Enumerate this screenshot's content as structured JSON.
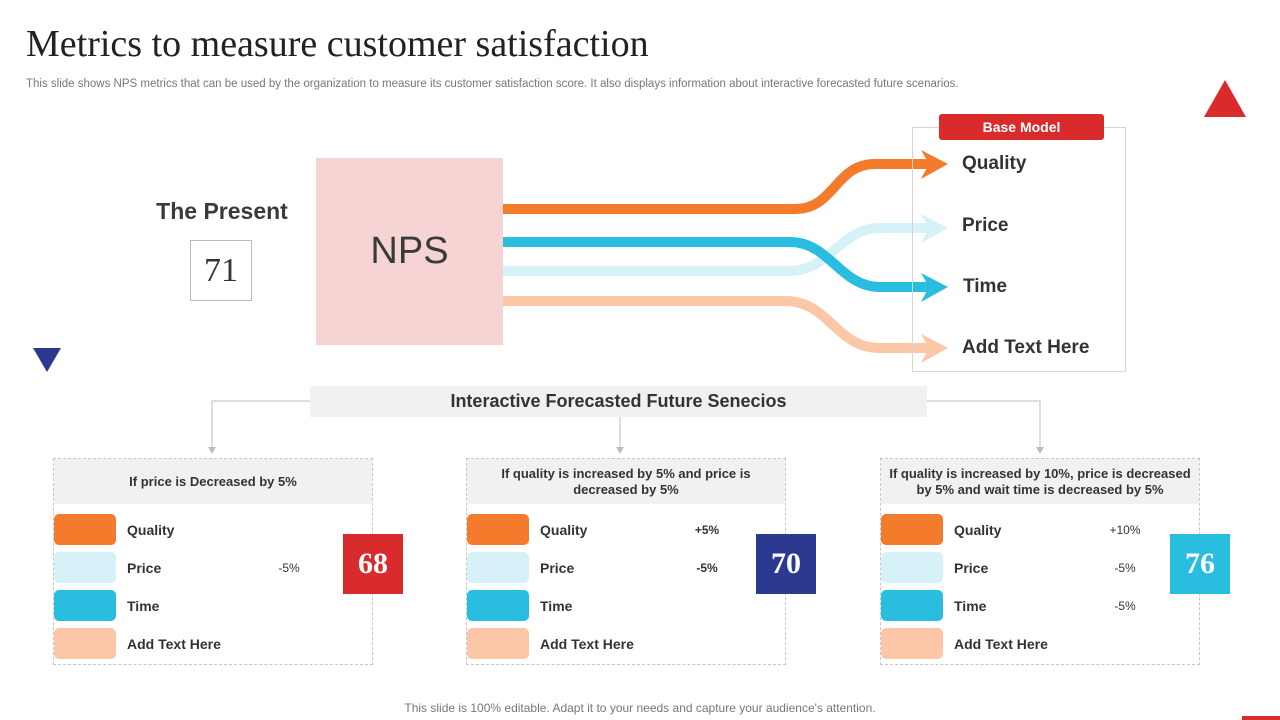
{
  "title": "Metrics to measure customer satisfaction",
  "subtitle": "This slide shows NPS metrics that can be used by the organization to measure its customer satisfaction score. It also displays information about interactive forecasted future scenarios.",
  "present": {
    "label": "The Present",
    "score": "71"
  },
  "nps_label": "NPS",
  "base_model": {
    "badge": "Base Model",
    "outcomes": [
      "Quality",
      "Price",
      "Time",
      "Add Text Here"
    ]
  },
  "future_title": "Interactive Forecasted Future Senecios",
  "colors": {
    "quality": "#f47a2c",
    "price": "#d6f1f8",
    "time": "#29bde0",
    "other": "#fcc7a6",
    "red": "#d92b2b",
    "navy": "#2b3990"
  },
  "scenarios": [
    {
      "header": "If price is Decreased by 5%",
      "rows": [
        {
          "label": "Quality",
          "value": ""
        },
        {
          "label": "Price",
          "value": "-5%"
        },
        {
          "label": "Time",
          "value": ""
        },
        {
          "label": "Add Text Here",
          "value": ""
        }
      ],
      "score": "68",
      "score_color": "#d92b2b"
    },
    {
      "header": "If quality is increased by 5% and price is decreased by 5%",
      "rows": [
        {
          "label": "Quality",
          "value": "+5%"
        },
        {
          "label": "Price",
          "value": "-5%"
        },
        {
          "label": "Time",
          "value": ""
        },
        {
          "label": "Add Text Here",
          "value": ""
        }
      ],
      "score": "70",
      "score_color": "#2b3990"
    },
    {
      "header": "If quality is increased by 10%, price is decreased by 5% and wait time is decreased by 5%",
      "rows": [
        {
          "label": "Quality",
          "value": "+10%"
        },
        {
          "label": "Price",
          "value": "-5%"
        },
        {
          "label": "Time",
          "value": "-5%"
        },
        {
          "label": "Add Text Here",
          "value": ""
        }
      ],
      "score": "76",
      "score_color": "#29bde0"
    }
  ],
  "footer": "This slide is 100% editable. Adapt it to your needs and capture your audience's attention."
}
